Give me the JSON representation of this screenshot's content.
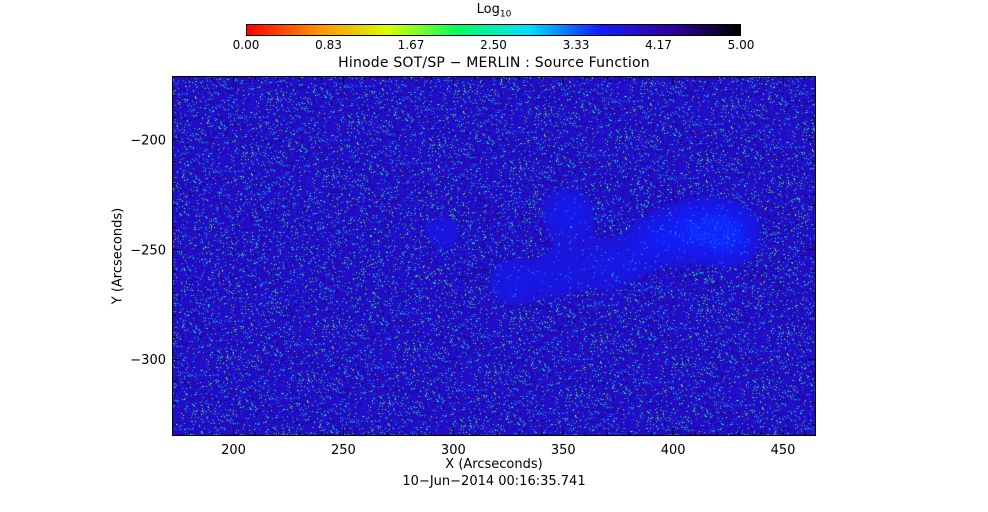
{
  "chart_data": {
    "type": "heatmap",
    "title": "Hinode SOT/SP − MERLIN : Source Function",
    "xlabel": "X (Arcseconds)",
    "ylabel": "Y (Arcseconds)",
    "xlim": [
      172,
      465
    ],
    "ylim": [
      -335,
      -171
    ],
    "x_ticks": [
      200,
      250,
      300,
      350,
      400,
      450
    ],
    "x_tick_labels": [
      "200",
      "250",
      "300",
      "350",
      "400",
      "450"
    ],
    "y_ticks": [
      -200,
      -250,
      -300
    ],
    "y_tick_labels": [
      "−200",
      "−250",
      "−300"
    ],
    "colorbar": {
      "label_main": "Log",
      "label_sub": "10",
      "range": [
        0,
        5
      ],
      "tick_labels": [
        "0.00",
        "0.83",
        "1.67",
        "2.50",
        "3.33",
        "4.17",
        "5.00"
      ],
      "colors": [
        "#ff0000",
        "#ff9000",
        "#d8ff00",
        "#00ff60",
        "#00e0ff",
        "#1020ff",
        "#3000a0",
        "#000000"
      ]
    },
    "dominant_log_value": 4.0,
    "active_regions": [
      {
        "x": 426,
        "y": -243,
        "strength": 0.9
      },
      {
        "x": 410,
        "y": -240,
        "strength": 0.7
      },
      {
        "x": 392,
        "y": -246,
        "strength": 0.6
      },
      {
        "x": 352,
        "y": -233,
        "strength": 0.6
      },
      {
        "x": 326,
        "y": -265,
        "strength": 0.5
      },
      {
        "x": 348,
        "y": -262,
        "strength": 0.4
      },
      {
        "x": 295,
        "y": -242,
        "strength": 0.4
      },
      {
        "x": 372,
        "y": -258,
        "strength": 0.5
      }
    ],
    "timestamp": "10−Jun−2014 00:16:35.741"
  }
}
